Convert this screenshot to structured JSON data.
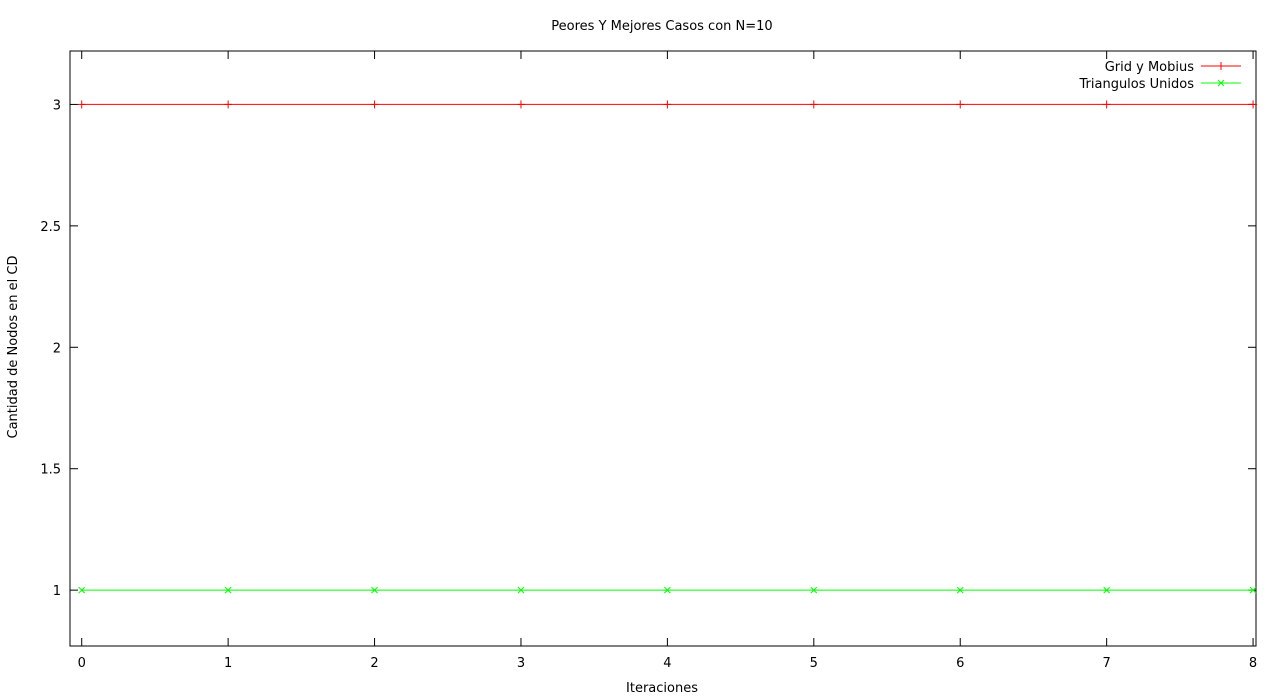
{
  "chart_data": {
    "type": "line",
    "title": "Peores Y Mejores Casos con N=10",
    "xlabel": "Iteraciones",
    "ylabel": "Cantidad de Nodos en el CD",
    "xlim": [
      -0.08,
      8.02
    ],
    "ylim": [
      0.77,
      3.22
    ],
    "xticks": [
      0,
      1,
      2,
      3,
      4,
      5,
      6,
      7,
      8
    ],
    "yticks": [
      1,
      1.5,
      2,
      2.5,
      3
    ],
    "ytick_labels": [
      "1",
      "1.5",
      "2",
      "2.5",
      "3"
    ],
    "grid": false,
    "legend_position": "top-right",
    "series": [
      {
        "name": "Grid y Mobius",
        "color": "#ff0000",
        "marker": "plus",
        "x": [
          0,
          1,
          2,
          3,
          4,
          5,
          6,
          7,
          8
        ],
        "y": [
          3,
          3,
          3,
          3,
          3,
          3,
          3,
          3,
          3
        ]
      },
      {
        "name": "Triangulos Unidos",
        "color": "#00ff00",
        "marker": "cross",
        "x": [
          0,
          1,
          2,
          3,
          4,
          5,
          6,
          7,
          8
        ],
        "y": [
          1,
          1,
          1,
          1,
          1,
          1,
          1,
          1,
          1
        ]
      }
    ]
  }
}
